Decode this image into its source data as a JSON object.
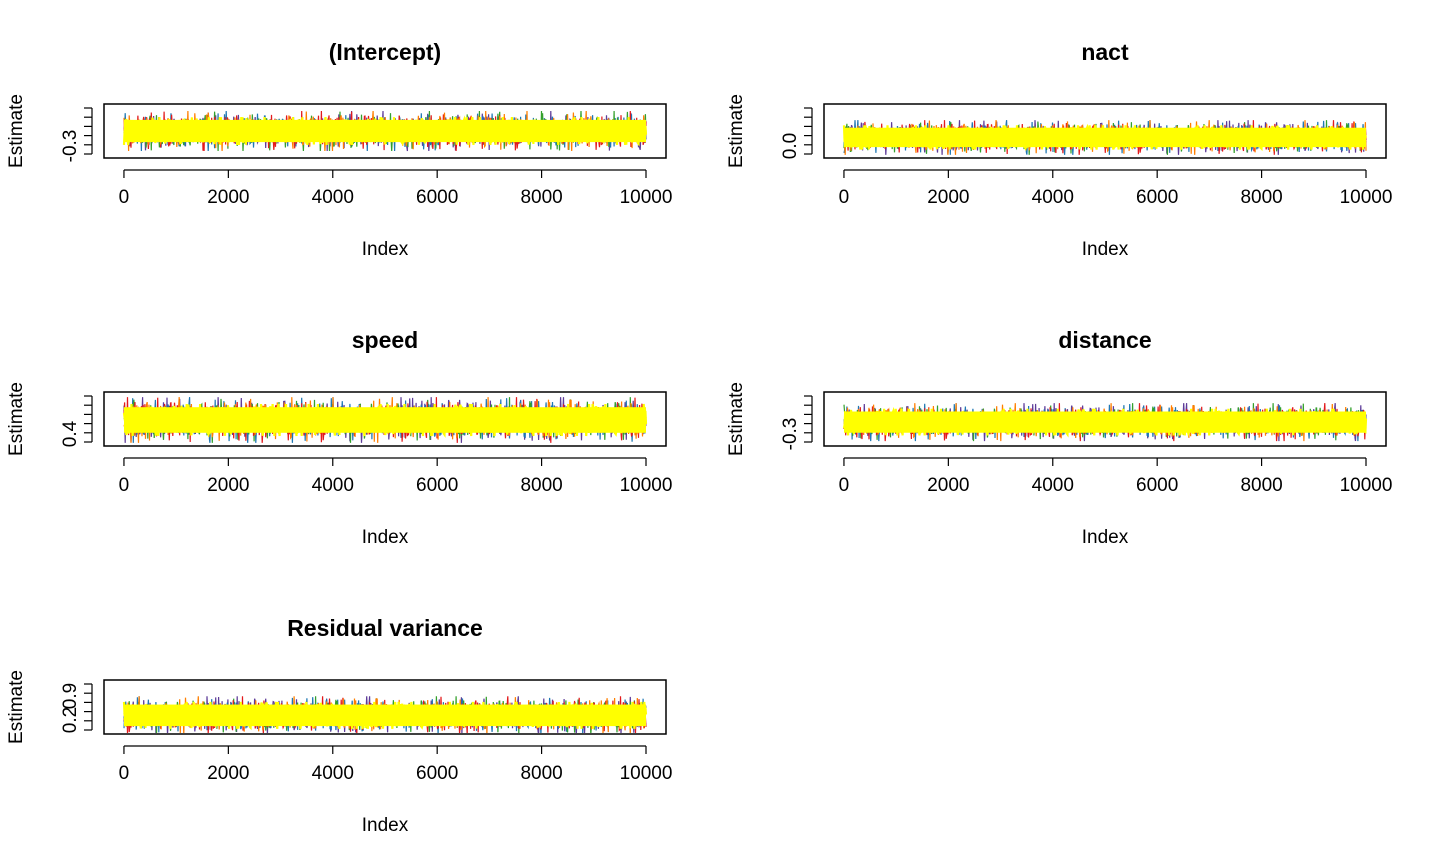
{
  "figure": {
    "chain_colors": [
      "#5E3C99",
      "#1F78B4",
      "#33A02C",
      "#E31A1C",
      "#FF7F00",
      "#FFFF00"
    ]
  },
  "chart_data": [
    {
      "type": "line",
      "title": "(Intercept)",
      "xlabel": "Index",
      "ylabel": "Estimate",
      "x_range": [
        1,
        10000
      ],
      "x_ticks": [
        "0",
        "2000",
        "4000",
        "6000",
        "8000",
        "10000"
      ],
      "y_ticks": [
        "-0.3"
      ],
      "y_range": [
        -0.42,
        0.12
      ],
      "band": {
        "center": -0.15,
        "halfwidth": 0.16,
        "yellow_halfwidth": 0.15
      },
      "grid": false
    },
    {
      "type": "line",
      "title": "nact",
      "xlabel": "Index",
      "ylabel": "Estimate",
      "x_range": [
        1,
        10000
      ],
      "x_ticks": [
        "0",
        "2000",
        "4000",
        "6000",
        "8000",
        "10000"
      ],
      "y_ticks": [
        "0.0"
      ],
      "y_range": [
        -0.05,
        0.3
      ],
      "band": {
        "center": 0.08,
        "halfwidth": 0.09,
        "yellow_halfwidth": 0.085
      },
      "grid": false
    },
    {
      "type": "line",
      "title": "speed",
      "xlabel": "Index",
      "ylabel": "Estimate",
      "x_range": [
        1,
        10000
      ],
      "x_ticks": [
        "0",
        "2000",
        "4000",
        "6000",
        "8000",
        "10000"
      ],
      "y_ticks": [
        "0.4"
      ],
      "y_range": [
        0.36,
        0.86
      ],
      "band": {
        "center": 0.6,
        "halfwidth": 0.17,
        "yellow_halfwidth": 0.16
      },
      "grid": false
    },
    {
      "type": "line",
      "title": "distance",
      "xlabel": "Index",
      "ylabel": "Estimate",
      "x_range": [
        1,
        10000
      ],
      "x_ticks": [
        "0",
        "2000",
        "4000",
        "6000",
        "8000",
        "10000"
      ],
      "y_ticks": [
        "-0.3"
      ],
      "y_range": [
        -0.36,
        -0.04
      ],
      "band": {
        "center": -0.22,
        "halfwidth": 0.09,
        "yellow_halfwidth": 0.085
      },
      "grid": false
    },
    {
      "type": "line",
      "title": "Residual variance",
      "xlabel": "Index",
      "ylabel": "Estimate",
      "x_range": [
        1,
        10000
      ],
      "x_ticks": [
        "0",
        "2000",
        "4000",
        "6000",
        "8000",
        "10000"
      ],
      "y_ticks": [
        "0.2",
        "0.9"
      ],
      "y_range": [
        0.18,
        0.96
      ],
      "band": {
        "center": 0.44,
        "halfwidth": 0.22,
        "yellow_halfwidth": 0.21
      },
      "grid": false
    }
  ]
}
